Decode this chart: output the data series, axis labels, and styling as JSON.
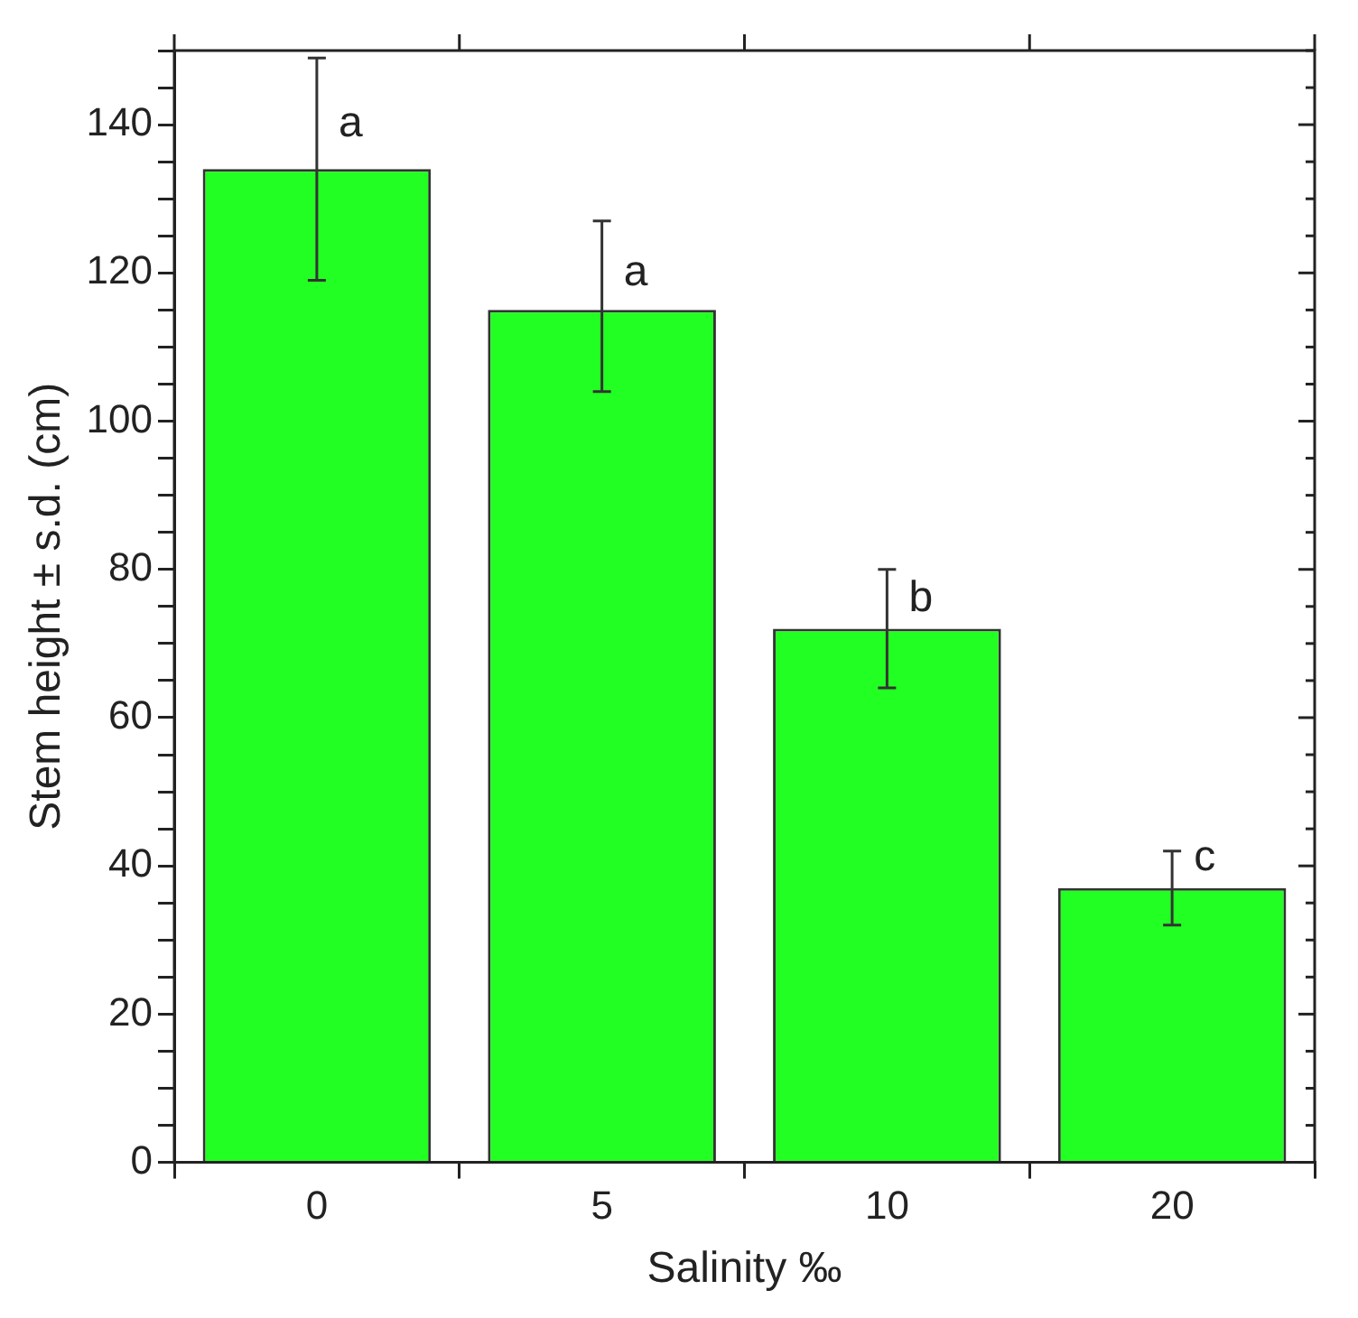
{
  "chart_data": {
    "type": "bar",
    "xlabel": "Salinity ‰",
    "ylabel": "Stem height ± s.d. (cm)",
    "categories": [
      "0",
      "5",
      "10",
      "20"
    ],
    "values": [
      134,
      115,
      72,
      37
    ],
    "errors": [
      [
        119,
        149
      ],
      [
        104,
        127
      ],
      [
        64,
        80
      ],
      [
        32,
        42
      ]
    ],
    "color": "#22ff22",
    "ylim": [
      0,
      150
    ],
    "yticks": [
      0,
      {
        "value": 5,
        "label": null
      },
      {
        "value": 10,
        "label": null
      },
      {
        "value": 15,
        "label": null
      },
      20,
      {
        "value": 25,
        "label": null
      },
      {
        "value": 30,
        "label": null
      },
      {
        "value": 35,
        "label": null
      },
      40,
      {
        "value": 45,
        "label": null
      },
      {
        "value": 50,
        "label": null
      },
      {
        "value": 55,
        "label": null
      },
      60,
      {
        "value": 65,
        "label": null
      },
      {
        "value": 70,
        "label": null
      },
      {
        "value": 75,
        "label": null
      },
      80,
      {
        "value": 85,
        "label": null
      },
      {
        "value": 90,
        "label": null
      },
      {
        "value": 95,
        "label": null
      },
      100,
      {
        "value": 105,
        "label": null
      },
      {
        "value": 110,
        "label": null
      },
      {
        "value": 115,
        "label": null
      },
      120,
      {
        "value": 125,
        "label": null
      },
      {
        "value": 130,
        "label": null
      },
      {
        "value": 135,
        "label": null
      },
      140,
      {
        "value": 145,
        "label": null
      },
      {
        "value": 150,
        "label": null
      }
    ],
    "annotations": [
      {
        "text": "a",
        "x": "0",
        "y": 140
      },
      {
        "text": "a",
        "x": "5",
        "y": 120
      },
      {
        "text": "b",
        "x": "10",
        "y": 76
      },
      {
        "text": "c",
        "x": "20",
        "y": 41
      }
    ],
    "grid": false,
    "legend": false
  }
}
